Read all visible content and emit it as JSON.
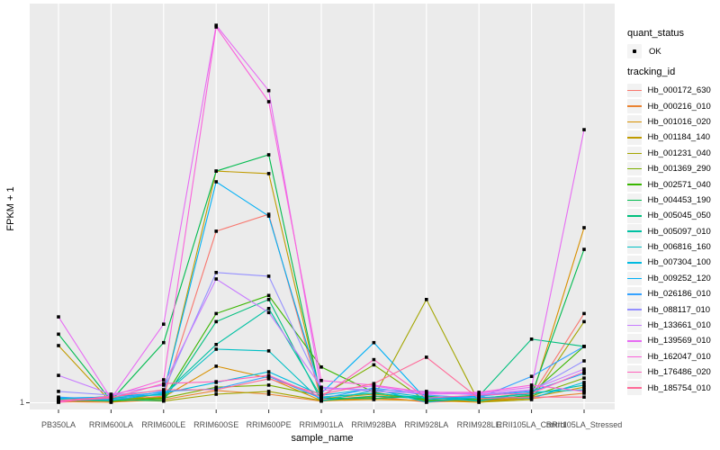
{
  "figure": {
    "y_axis_title": "FPKM + 1",
    "x_axis_title": "sample_name",
    "y_tick_label": "1",
    "background": "#FFFFFF"
  },
  "panel": {
    "bg": "#EBEBEB",
    "grid": "#FFFFFF",
    "tick_color": "#333333",
    "axis_text_color": "#4D4D4D",
    "marker_color": "#000000"
  },
  "legend": {
    "quant_status_title": "quant_status",
    "quant_status_items": [
      {
        "label": "OK",
        "marker": "black-point"
      }
    ],
    "tracking_id_title": "tracking_id",
    "key_bg": "#F2F2F2"
  },
  "chart_data": {
    "type": "line",
    "title": "",
    "xlabel": "sample_name",
    "ylabel": "FPKM + 1",
    "y_scale": "log10",
    "y_ticks": [
      1
    ],
    "ylim": [
      1,
      1100
    ],
    "grid": "vertical-major-only",
    "legend_position": "right",
    "point_marker": "black-square",
    "x_categories": [
      "PB350LA",
      "RRIM600LA",
      "RRIM600LE",
      "RRIM600SE",
      "RRIM600PE",
      "RRIM901LA",
      "RRIM928BA",
      "RRIM928LA",
      "RRIM928LE",
      "RRII105LA_Control",
      "RRII105LA_Stressed"
    ],
    "series": [
      {
        "name": "Hb_000172_630",
        "color": "#F8766D",
        "values": [
          1.01,
          1.04,
          1.13,
          23.0,
          31.3,
          1.06,
          1.13,
          1.01,
          1.04,
          1.13,
          5.1
        ]
      },
      {
        "name": "Hb_000216_010",
        "color": "#EA8331",
        "values": [
          1.02,
          1.01,
          1.06,
          1.25,
          1.17,
          1.03,
          1.09,
          1.03,
          1.03,
          1.08,
          1.19
        ]
      },
      {
        "name": "Hb_001016_020",
        "color": "#D89000",
        "values": [
          1.04,
          1.03,
          1.11,
          1.95,
          1.57,
          1.04,
          1.06,
          1.04,
          1.01,
          1.09,
          24.5
        ]
      },
      {
        "name": "Hb_001184_140",
        "color": "#C09B00",
        "values": [
          2.84,
          1.01,
          1.19,
          69.0,
          65.8,
          1.08,
          1.17,
          1.06,
          1.03,
          1.11,
          1.33
        ]
      },
      {
        "name": "Hb_001231_040",
        "color": "#A3A500",
        "values": [
          1.03,
          1.06,
          1.03,
          1.17,
          1.23,
          1.04,
          1.11,
          6.6,
          1.01,
          1.06,
          4.4
        ]
      },
      {
        "name": "Hb_001369_290",
        "color": "#7CAE00",
        "values": [
          1.04,
          1.08,
          1.09,
          1.33,
          1.38,
          1.13,
          2.0,
          1.03,
          1.06,
          1.13,
          1.57
        ]
      },
      {
        "name": "Hb_002571_040",
        "color": "#39B600",
        "values": [
          1.06,
          1.03,
          1.08,
          5.1,
          7.1,
          1.92,
          1.21,
          1.04,
          1.08,
          1.19,
          2.8
        ]
      },
      {
        "name": "Hb_004453_190",
        "color": "#00BB4E",
        "values": [
          3.5,
          1.04,
          3.0,
          69.0,
          92.9,
          1.09,
          1.08,
          1.13,
          1.04,
          1.15,
          16.5
        ]
      },
      {
        "name": "Hb_005045_050",
        "color": "#00BF7D",
        "values": [
          1.03,
          1.06,
          1.04,
          4.4,
          6.6,
          1.04,
          1.13,
          1.08,
          1.13,
          3.2,
          2.8
        ]
      },
      {
        "name": "Hb_005097_010",
        "color": "#00C1A3",
        "values": [
          1.08,
          1.09,
          1.17,
          2.9,
          5.6,
          1.11,
          1.19,
          1.09,
          1.09,
          1.17,
          1.38
        ]
      },
      {
        "name": "Hb_006816_160",
        "color": "#00BFC4",
        "values": [
          1.04,
          1.13,
          1.15,
          2.66,
          2.58,
          1.03,
          1.25,
          1.11,
          1.03,
          1.21,
          1.27
        ]
      },
      {
        "name": "Hb_007304_100",
        "color": "#00BAE0",
        "values": [
          1.06,
          1.04,
          1.19,
          1.45,
          1.76,
          1.15,
          1.29,
          1.01,
          1.11,
          1.09,
          1.45
        ]
      },
      {
        "name": "Hb_009252_120",
        "color": "#00B0F6",
        "values": [
          1.09,
          1.11,
          1.21,
          56.7,
          30.3,
          1.19,
          3.0,
          1.06,
          1.13,
          1.23,
          1.71
        ]
      },
      {
        "name": "Hb_026186_010",
        "color": "#35A2FF",
        "values": [
          1.11,
          1.06,
          1.23,
          1.29,
          1.62,
          1.08,
          1.31,
          1.15,
          1.09,
          1.62,
          2.8
        ]
      },
      {
        "name": "Hb_088117_010",
        "color": "#9590FF",
        "values": [
          1.23,
          1.15,
          1.25,
          10.8,
          10.1,
          1.31,
          1.27,
          1.23,
          1.15,
          1.25,
          2.15
        ]
      },
      {
        "name": "Hb_133661_010",
        "color": "#C77CFF",
        "values": [
          1.65,
          1.17,
          1.38,
          9.6,
          5.2,
          1.33,
          1.23,
          1.19,
          1.17,
          1.27,
          1.85
        ]
      },
      {
        "name": "Hb_139569_010",
        "color": "#E76BF3",
        "values": [
          4.8,
          1.08,
          4.2,
          990,
          300,
          1.25,
          1.36,
          1.17,
          1.19,
          1.33,
          147
        ]
      },
      {
        "name": "Hb_162047_010",
        "color": "#FA62DB",
        "values": [
          1.01,
          1.13,
          1.52,
          960,
          245,
          1.5,
          1.38,
          1.21,
          1.21,
          1.38,
          1.23
        ]
      },
      {
        "name": "Hb_176486_020",
        "color": "#FF62BC",
        "values": [
          1.03,
          1.09,
          1.42,
          1.47,
          1.65,
          1.11,
          2.2,
          1.09,
          1.15,
          1.19,
          1.76
        ]
      },
      {
        "name": "Hb_185754_010",
        "color": "#FF6A98",
        "values": [
          1.04,
          1.11,
          1.27,
          1.27,
          1.55,
          1.17,
          1.42,
          2.3,
          1.08,
          1.11,
          1.11
        ]
      }
    ]
  }
}
